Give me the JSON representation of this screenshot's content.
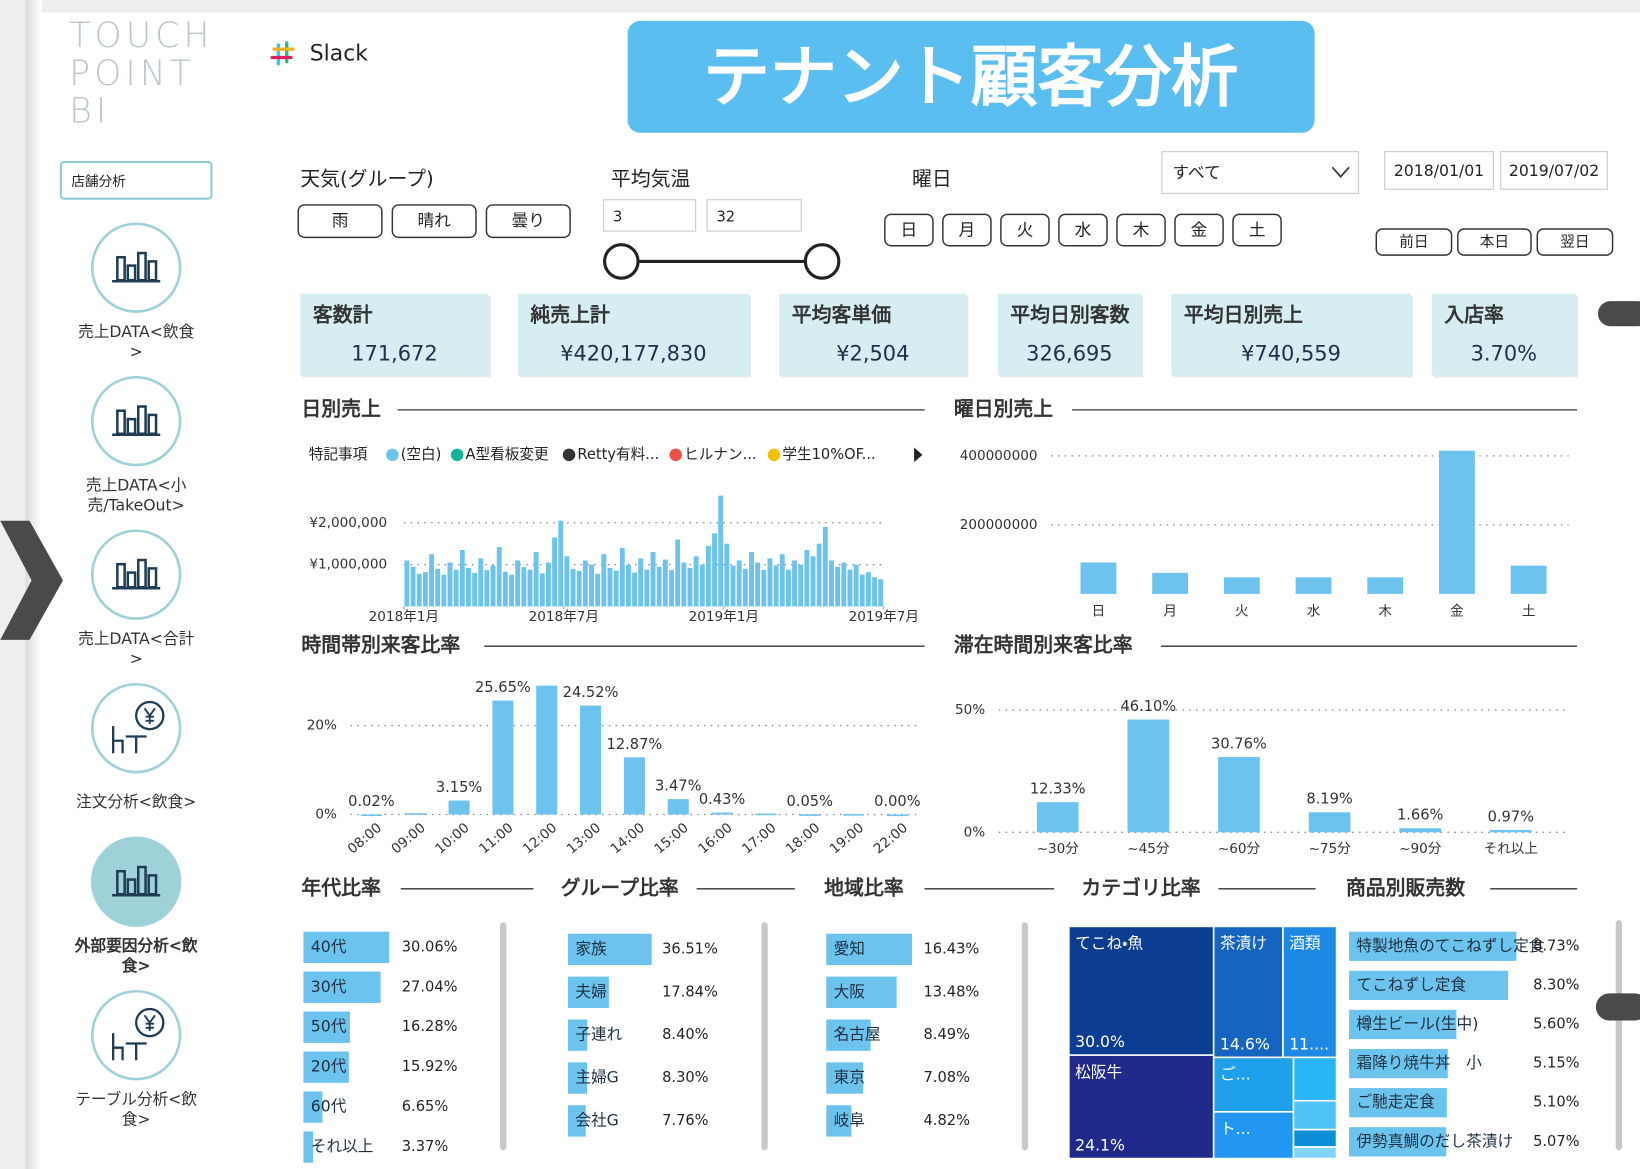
{
  "sidebar": {
    "logo": [
      "TOUCH",
      "POINT",
      "BI"
    ],
    "dropdown": "店舗分析",
    "active": 4,
    "nav": [
      {
        "icon": "chart",
        "label": [
          "売上DATA<飲食",
          ">"
        ]
      },
      {
        "icon": "chart",
        "label": [
          "売上DATA<小",
          "売/TakeOut>"
        ]
      },
      {
        "icon": "chart",
        "label": [
          "売上DATA<合計",
          ">"
        ]
      },
      {
        "icon": "order",
        "label": [
          "注文分析<飲食>"
        ]
      },
      {
        "icon": "chart",
        "label": [
          "外部要因分析<飲",
          "食>"
        ]
      },
      {
        "icon": "order",
        "label": [
          "テーブル分析<飲",
          "食>"
        ]
      }
    ]
  },
  "header": {
    "app": "Slack",
    "banner": "テナント顧客分析"
  },
  "filters": {
    "weather": {
      "title": "天気(グループ)",
      "options": [
        "雨",
        "晴れ",
        "曇り"
      ]
    },
    "temperature": {
      "title": "平均気温",
      "min": "3",
      "max": "32"
    },
    "weekday": {
      "title": "曜日",
      "options": [
        "日",
        "月",
        "火",
        "水",
        "木",
        "金",
        "土"
      ]
    },
    "select": "すべて",
    "dates": [
      "2018/01/01",
      "2019/07/02"
    ],
    "day_nav": [
      "前日",
      "本日",
      "翌日"
    ]
  },
  "kpis": [
    {
      "label": "客数計",
      "value": "171,672"
    },
    {
      "label": "純売上計",
      "value": "¥420,177,830"
    },
    {
      "label": "平均客単価",
      "value": "¥2,504"
    },
    {
      "label": "平均日別客数",
      "value": "326,695"
    },
    {
      "label": "平均日別売上",
      "value": "¥740,559"
    },
    {
      "label": "入店率",
      "value": "3.70%"
    }
  ],
  "chart_data": [
    {
      "type": "bar",
      "title": "日別売上",
      "legend_title": "特記事項",
      "legend": [
        {
          "name": "(空白)",
          "color": "#6cc4ee"
        },
        {
          "name": "A型看板変更",
          "color": "#10b39a"
        },
        {
          "name": "Retty有料...",
          "color": "#333333"
        },
        {
          "name": "ヒルナン...",
          "color": "#f0504a"
        },
        {
          "name": "学生10%OF...",
          "color": "#f2c200"
        }
      ],
      "color": "#6cc4ee",
      "values": [
        1100000,
        950000,
        780000,
        820000,
        1250000,
        900000,
        760000,
        1050000,
        880000,
        1350000,
        920000,
        800000,
        1150000,
        870000,
        980000,
        1420000,
        830000,
        760000,
        1100000,
        940000,
        880000,
        1300000,
        790000,
        1050000,
        1650000,
        2050000,
        1200000,
        900000,
        850000,
        1100000,
        1000000,
        780000,
        1250000,
        920000,
        860000,
        1400000,
        990000,
        810000,
        1150000,
        880000,
        1300000,
        950000,
        1120000,
        870000,
        1600000,
        1050000,
        920000,
        1200000,
        1000000,
        1450000,
        1750000,
        2650000,
        1500000,
        980000,
        1100000,
        900000,
        1300000,
        1050000,
        870000,
        1150000,
        980000,
        1250000,
        880000,
        1100000,
        1000000,
        1350000,
        1200000,
        1500000,
        1900000,
        1100000,
        950000,
        1050000,
        880000,
        1000000,
        760000,
        820000,
        700000,
        650000
      ],
      "xlim": [
        0,
        78
      ],
      "xticks": [
        {
          "value": 0,
          "label": "2018年1月"
        },
        {
          "value": 26,
          "label": "2018年7月"
        },
        {
          "value": 52,
          "label": "2019年1月"
        },
        {
          "value": 78,
          "label": "2019年7月"
        }
      ],
      "ylim": [
        0,
        3000000
      ],
      "yticks": [
        {
          "value": 1000000,
          "label": "¥1,000,000"
        },
        {
          "value": 2000000,
          "label": "¥2,000,000"
        }
      ],
      "grid": true
    },
    {
      "type": "bar",
      "title": "曜日別売上",
      "color": "#6cc4ee",
      "categories": [
        "日",
        "月",
        "火",
        "水",
        "木",
        "金",
        "土"
      ],
      "values": [
        91000000,
        61000000,
        48000000,
        48000000,
        48000000,
        415000000,
        82000000
      ],
      "ylim": [
        0,
        420000000
      ],
      "yticks": [
        200000000,
        400000000
      ],
      "grid": true
    },
    {
      "type": "bar",
      "title": "時間帯別来客比率",
      "color": "#6cc4ee",
      "rotate_labels": true,
      "categories": [
        "08:00",
        "09:00",
        "10:00",
        "11:00",
        "12:00",
        "13:00",
        "14:00",
        "15:00",
        "16:00",
        "17:00",
        "18:00",
        "19:00",
        "22:00"
      ],
      "values": [
        0.02,
        0.3,
        3.15,
        25.65,
        29,
        24.52,
        12.87,
        3.47,
        0.43,
        0.2,
        0.05,
        0.1,
        0.0
      ],
      "value_labels": [
        "0.02%",
        null,
        "3.15%",
        "25.65%",
        null,
        "24.52%",
        "12.87%",
        "3.47%",
        "0.43%",
        null,
        "0.05%",
        null,
        "0.00%"
      ],
      "ylim": [
        0,
        30
      ],
      "yticks": [
        {
          "value": 0,
          "label": "0%"
        },
        {
          "value": 20,
          "label": "20%"
        }
      ],
      "grid": true
    },
    {
      "type": "bar",
      "title": "滞在時間別来客比率",
      "color": "#6cc4ee",
      "categories": [
        "~30分",
        "~45分",
        "~60分",
        "~75分",
        "~90分",
        "それ以上"
      ],
      "values": [
        12.33,
        46.1,
        30.76,
        8.19,
        1.66,
        0.97
      ],
      "value_labels": [
        "12.33%",
        "46.10%",
        "30.76%",
        "8.19%",
        "1.66%",
        "0.97%"
      ],
      "ylim": [
        0,
        55
      ],
      "yticks": [
        {
          "value": 0,
          "label": "0%"
        },
        {
          "value": 50,
          "label": "50%"
        }
      ],
      "grid": true
    },
    {
      "type": "hbar",
      "title": "年代比率",
      "color": "#6cc4ee",
      "categories": [
        "40代",
        "30代",
        "50代",
        "20代",
        "60代",
        "それ以上"
      ],
      "values": [
        30.06,
        27.04,
        16.28,
        15.92,
        6.65,
        3.37
      ],
      "value_labels": [
        "30.06%",
        "27.04%",
        "16.28%",
        "15.92%",
        "6.65%",
        "3.37%"
      ]
    },
    {
      "type": "hbar",
      "title": "グループ比率",
      "color": "#6cc4ee",
      "categories": [
        "家族",
        "夫婦",
        "子連れ",
        "主婦G",
        "会社G"
      ],
      "values": [
        36.51,
        17.84,
        8.4,
        8.3,
        7.76
      ],
      "value_labels": [
        "36.51%",
        "17.84%",
        "8.40%",
        "8.30%",
        "7.76%"
      ]
    },
    {
      "type": "hbar",
      "title": "地域比率",
      "color": "#6cc4ee",
      "categories": [
        "愛知",
        "大阪",
        "名古屋",
        "東京",
        "岐阜"
      ],
      "values": [
        16.43,
        13.48,
        8.49,
        7.08,
        4.82
      ],
      "value_labels": [
        "16.43%",
        "13.48%",
        "8.49%",
        "7.08%",
        "4.82%"
      ]
    },
    {
      "type": "treemap",
      "title": "カテゴリ比率",
      "nodes": [
        {
          "name": "てこね・魚",
          "value": 30.0,
          "label": "30.0%",
          "color": "#0b3d91"
        },
        {
          "name": "茶漬け",
          "value": 14.6,
          "label": "14.6%",
          "color": "#1565c0"
        },
        {
          "name": "酒類",
          "value": 11.3,
          "label": "11....",
          "color": "#1e88e5"
        },
        {
          "name": "松阪牛",
          "value": 24.1,
          "label": "24.1%",
          "color": "#1f2a8a"
        },
        {
          "name": "ご...",
          "value": 7,
          "label": null,
          "color": "#1ea0ea"
        },
        {
          "name": "ト...",
          "value": 6,
          "label": null,
          "color": "#2196f3"
        },
        {
          "name": null,
          "value": 3,
          "label": null,
          "color": "#29b6f6"
        },
        {
          "name": null,
          "value": 2,
          "label": null,
          "color": "#4fc3f7"
        },
        {
          "name": null,
          "value": 1.2,
          "label": null,
          "color": "#0d8fd8"
        },
        {
          "name": null,
          "value": 0.8,
          "label": null,
          "color": "#81d4fa"
        }
      ]
    },
    {
      "type": "hbar",
      "title": "商品別販売数",
      "color": "#6cc4ee",
      "categories": [
        "特製地魚のてこねずし定食",
        "てこねずし定食",
        "樽生ビール(生中)",
        "霜降り焼牛丼　小",
        "ご馳走定食",
        "伊勢真鯛のだし茶漬け"
      ],
      "values": [
        8.73,
        8.3,
        5.6,
        5.15,
        5.1,
        5.07
      ],
      "value_labels": [
        "8.73%",
        "8.30%",
        "5.60%",
        "5.15%",
        "5.10%",
        "5.07%"
      ]
    }
  ]
}
